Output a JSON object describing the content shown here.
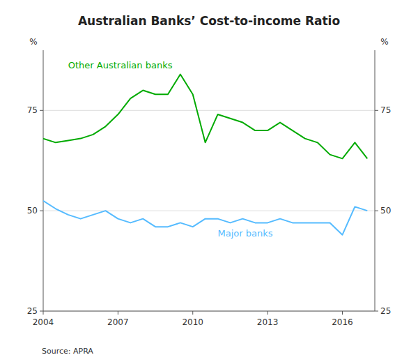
{
  "chart_data": {
    "type": "line",
    "title": "Australian Banks’ Cost-to-income Ratio",
    "ylabel": "%",
    "y2label": "%",
    "source": "Source:  APRA",
    "x": [
      2004.0,
      2004.5,
      2005.0,
      2005.5,
      2006.0,
      2006.5,
      2007.0,
      2007.5,
      2008.0,
      2008.5,
      2009.0,
      2009.5,
      2010.0,
      2010.5,
      2011.0,
      2011.5,
      2012.0,
      2012.5,
      2013.0,
      2013.5,
      2014.0,
      2014.5,
      2015.0,
      2015.5,
      2016.0,
      2016.5,
      2017.0
    ],
    "series": [
      {
        "name": "Other Australian banks",
        "color": "#00aa00",
        "values": [
          68,
          67,
          67.5,
          68,
          69,
          71,
          74,
          78,
          80,
          79,
          79,
          84,
          79,
          67,
          74,
          73,
          72,
          70,
          70,
          72,
          70,
          68,
          67,
          64,
          63,
          67,
          63
        ]
      },
      {
        "name": "Major banks",
        "color": "#55bbff",
        "values": [
          52.5,
          50.5,
          49,
          48,
          49,
          50,
          48,
          47,
          48,
          46,
          46,
          47,
          46,
          48,
          48,
          47,
          48,
          47,
          47,
          48,
          47,
          47,
          47,
          47,
          44,
          51,
          50
        ]
      }
    ],
    "xlim": [
      2004.0,
      2017.3
    ],
    "xticks": [
      2004,
      2007,
      2010,
      2013,
      2016
    ],
    "ylim": [
      25,
      90
    ],
    "yticks": [
      25,
      50,
      75
    ],
    "y2lim": [
      25,
      90
    ],
    "y2ticks": [
      25,
      50,
      75
    ],
    "grid": true
  }
}
